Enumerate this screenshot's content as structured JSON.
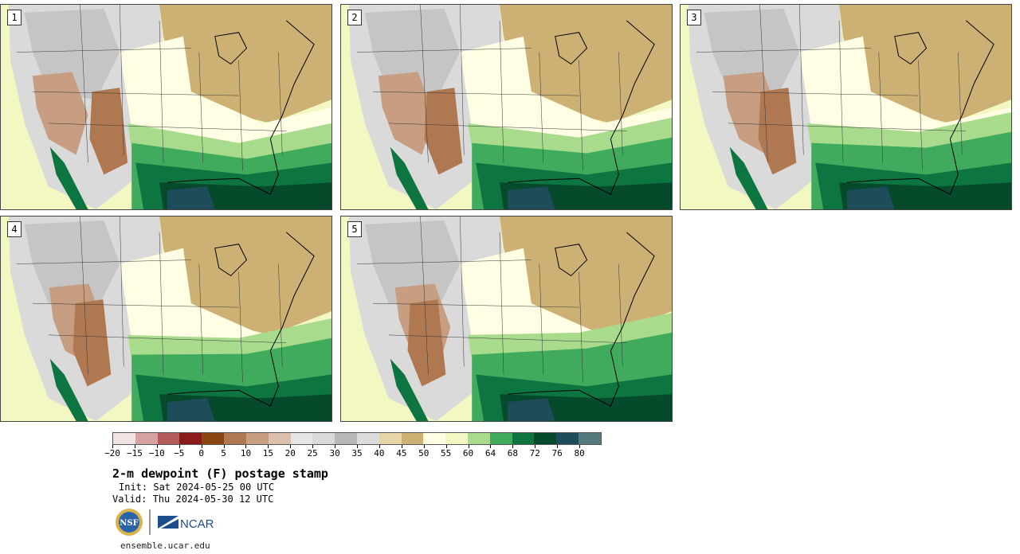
{
  "panels": [
    {
      "label": "1"
    },
    {
      "label": "2"
    },
    {
      "label": "3"
    },
    {
      "label": "4"
    },
    {
      "label": "5"
    }
  ],
  "colorbar": {
    "colors": [
      "#f2e4e4",
      "#d6a2a2",
      "#b45a5a",
      "#8b1a1a",
      "#8b4513",
      "#b07850",
      "#c79e82",
      "#dcc0ae",
      "#e6e6e6",
      "#dadada",
      "#b8b8b8",
      "#dcdcdc",
      "#e5d5a7",
      "#cdb174",
      "#fffee4",
      "#f3f7c2",
      "#a8dc8c",
      "#40ab5d",
      "#0d7540",
      "#064a2c",
      "#1f4c5a",
      "#547a7d"
    ],
    "tick_labels": [
      "−20",
      "−15",
      "−10",
      "−5",
      "0",
      "5",
      "10",
      "15",
      "20",
      "25",
      "30",
      "35",
      "40",
      "45",
      "50",
      "55",
      "60",
      "64",
      "68",
      "72",
      "76",
      "80"
    ]
  },
  "title": "2-m dewpoint (F) postage stamp",
  "init": "Init: Sat 2024-05-25 00 UTC",
  "valid": "Valid: Thu 2024-05-30 12 UTC",
  "logos": {
    "nsf": "NSF",
    "ncar": "NCAR"
  },
  "footer": "ensemble.ucar.edu"
}
